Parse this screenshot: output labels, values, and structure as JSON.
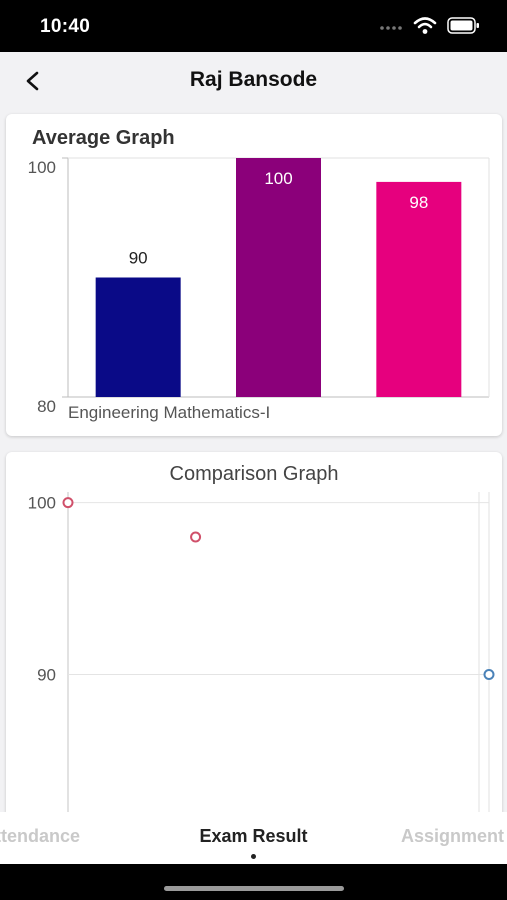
{
  "status": {
    "time": "10:40",
    "icons": [
      "signal-dots-icon",
      "wifi-icon",
      "battery-icon"
    ]
  },
  "header": {
    "title": "Raj Bansode",
    "back_icon": "chevron-left-icon"
  },
  "average_graph": {
    "title": "Average Graph",
    "chart_data": {
      "type": "bar",
      "categories": [
        "Engineering Mathematics-I"
      ],
      "series": [
        {
          "values": [
            90
          ],
          "color": "#0a0a87"
        },
        {
          "values": [
            100
          ],
          "color": "#8b007a"
        },
        {
          "values": [
            98
          ],
          "color": "#e6007e"
        }
      ],
      "ylim": [
        80,
        100
      ],
      "yticks": [
        "100",
        "80"
      ],
      "data_labels": [
        "90",
        "100",
        "98"
      ],
      "grid": false
    }
  },
  "comparison_graph": {
    "title": "Comparison Graph",
    "chart_data": {
      "type": "scatter",
      "series": [
        {
          "points": [
            [
              0,
              100
            ],
            [
              1,
              98
            ]
          ],
          "color": "#d0506a"
        },
        {
          "points": [
            [
              3.3,
              90
            ]
          ],
          "color": "#4a82b8"
        }
      ],
      "xlim": [
        0,
        3.3
      ],
      "ylim": [
        82,
        101.2
      ],
      "yticks": [
        {
          "value": 100,
          "label": "100"
        },
        {
          "value": 90,
          "label": "90"
        }
      ],
      "grid": true
    }
  },
  "tabs": {
    "attendance": "Attendance",
    "exam_result": "Exam Result",
    "assignment": "Assignment",
    "active": "Exam Result"
  }
}
